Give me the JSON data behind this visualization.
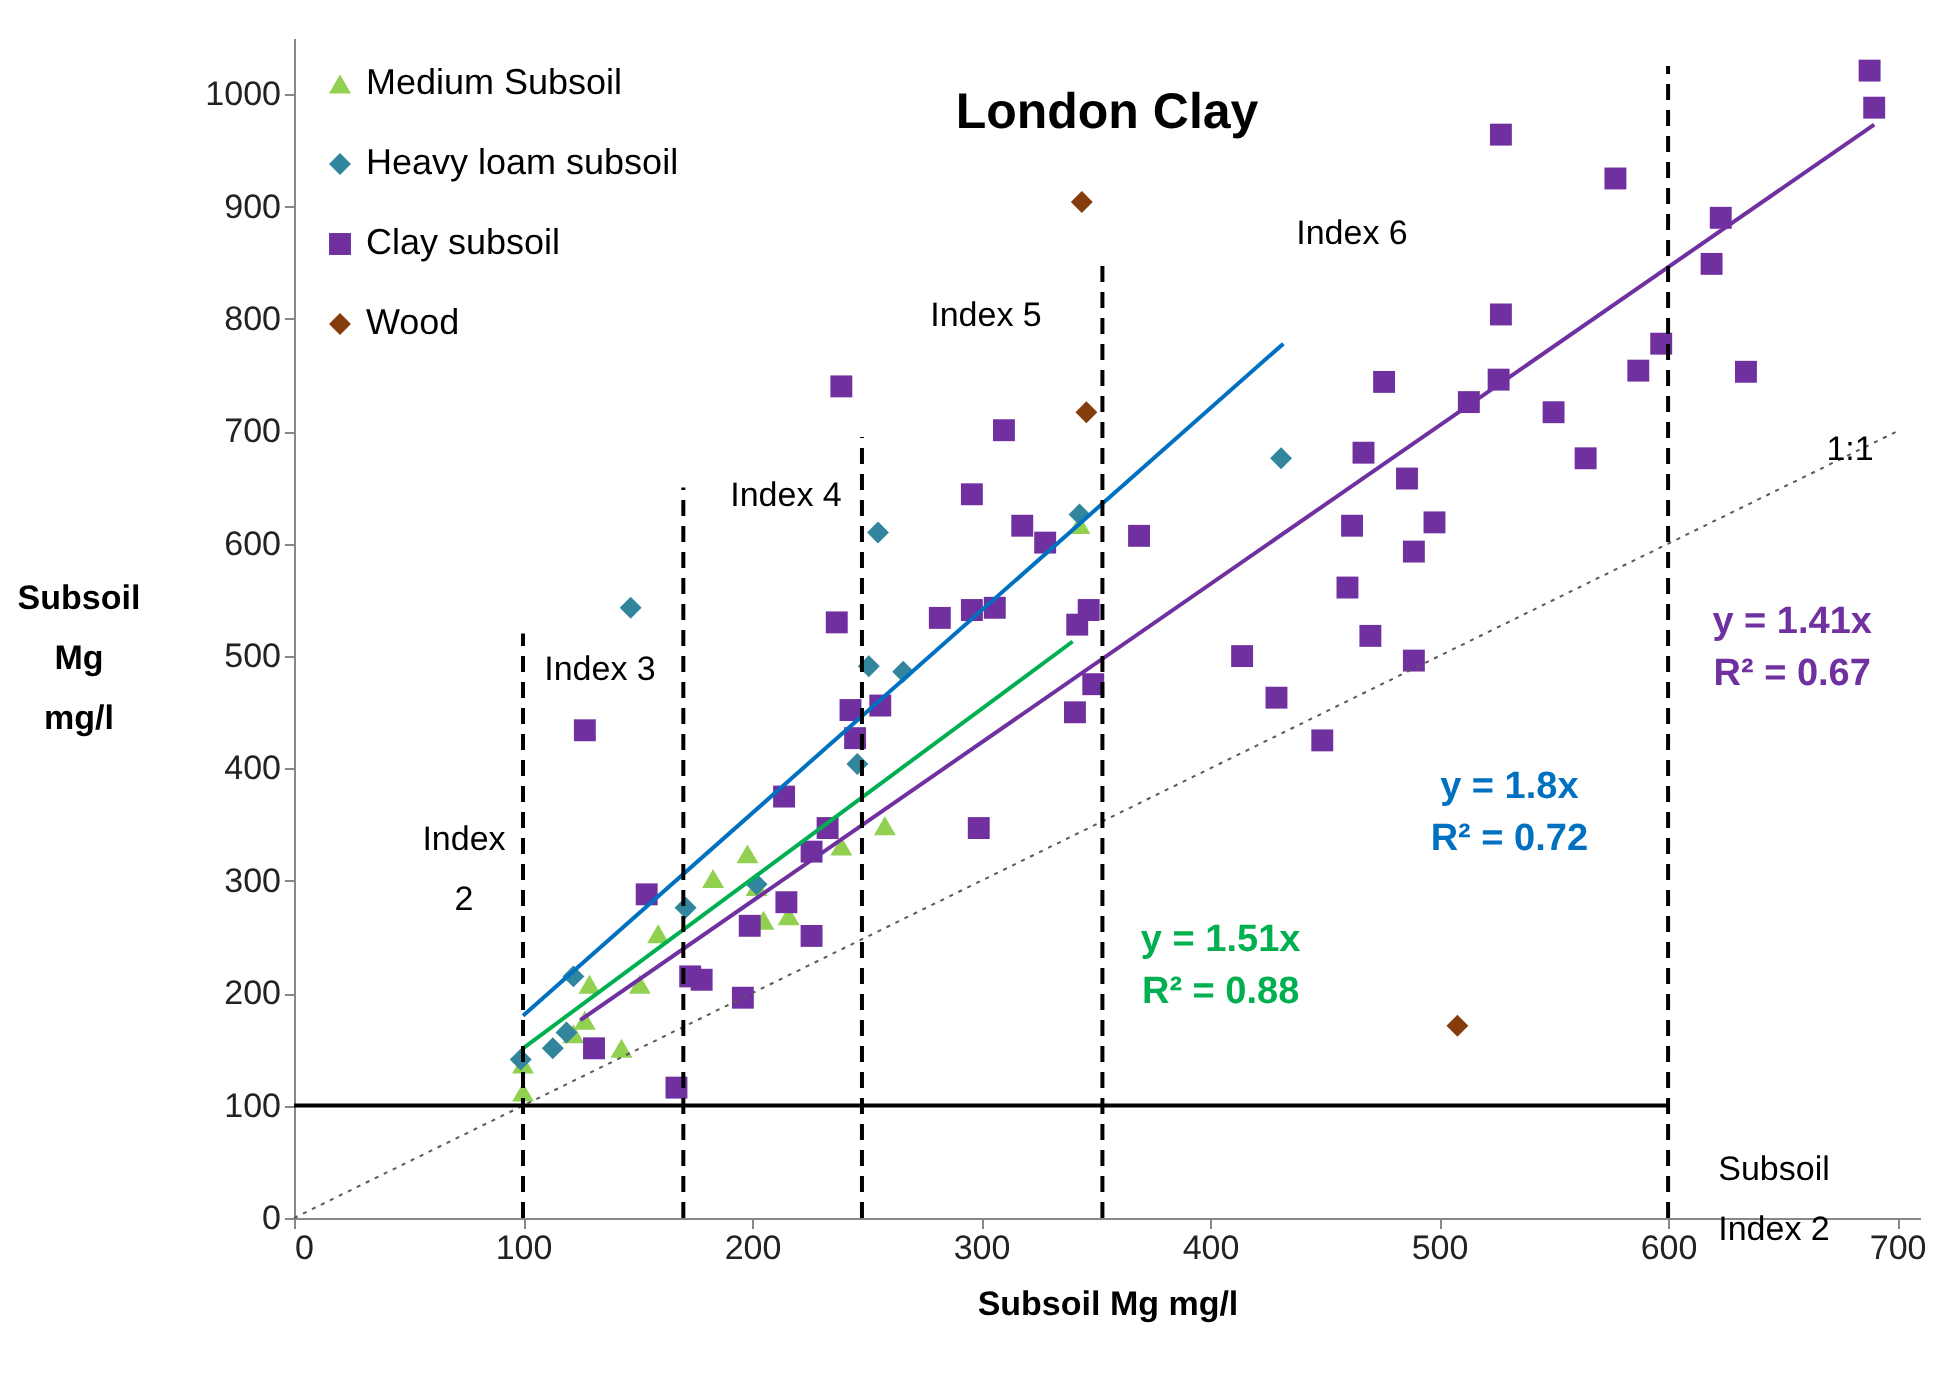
{
  "chart_data": {
    "type": "scatter",
    "title": "London Clay",
    "xlabel": "Subsoil  Mg mg/l",
    "ylabel": "Subsoil Mg mg/l",
    "xlim": [
      0,
      710
    ],
    "ylim": [
      0,
      1050
    ],
    "xticks": [
      0,
      100,
      200,
      300,
      400,
      500,
      600,
      700
    ],
    "yticks": [
      0,
      100,
      200,
      300,
      400,
      500,
      600,
      700,
      800,
      900,
      1000
    ],
    "grid": false,
    "legend": "top left",
    "series": [
      {
        "name": "Medium Subsoil",
        "type": "scatter",
        "marker": "triangle",
        "color": "#92d050",
        "x": [
          100,
          100,
          122,
          127,
          129,
          143,
          151,
          159,
          183,
          198,
          202,
          205,
          216,
          239,
          258,
          343
        ],
        "values": [
          112,
          137,
          164,
          176,
          208,
          151,
          208,
          253,
          302,
          324,
          295,
          265,
          269,
          331,
          349,
          617
        ]
      },
      {
        "name": "Heavy loam subsoil",
        "type": "scatter",
        "marker": "diamond",
        "color": "#31859c",
        "x": [
          99,
          113,
          119,
          122,
          147,
          171,
          202,
          246,
          251,
          266,
          255,
          343,
          431
        ],
        "values": [
          141,
          151,
          165,
          215,
          543,
          276,
          297,
          404,
          491,
          486,
          610,
          626,
          676
        ]
      },
      {
        "name": "Clay subsoil",
        "type": "scatter",
        "marker": "square",
        "color": "#7030a0",
        "x": [
          127,
          131,
          154,
          167,
          173,
          178,
          196,
          199,
          214,
          215,
          226,
          226,
          233,
          237,
          243,
          245,
          256,
          239,
          310,
          296,
          318,
          328,
          282,
          296,
          306,
          342,
          347,
          349,
          341,
          369,
          688,
          690,
          527,
          577,
          623,
          619,
          527,
          597,
          587,
          634,
          476,
          526,
          513,
          550,
          467,
          564,
          486,
          462,
          498,
          489,
          460,
          470,
          414,
          489,
          429,
          299,
          449
        ],
        "values": [
          434,
          151,
          288,
          116,
          215,
          212,
          196,
          260,
          375,
          281,
          326,
          251,
          347,
          530,
          452,
          427,
          456,
          740,
          701,
          644,
          616,
          601,
          534,
          541,
          543,
          528,
          541,
          475,
          450,
          607,
          1021,
          988,
          964,
          925,
          890,
          849,
          804,
          778,
          754,
          753,
          744,
          746,
          726,
          717,
          681,
          676,
          658,
          616,
          619,
          593,
          561,
          518,
          500,
          496,
          463,
          347,
          425
        ]
      },
      {
        "name": "Wood",
        "type": "scatter",
        "marker": "diamond",
        "color": "#843c0c",
        "x": [
          344,
          346,
          508
        ],
        "values": [
          904,
          717,
          171
        ]
      },
      {
        "name": "y = 1.51x\nR² = 0.88",
        "type": "line",
        "color": "#00b050",
        "x": [
          100,
          340
        ],
        "values": [
          151,
          513
        ]
      },
      {
        "name": "y = 1.8x\nR² = 0.72",
        "type": "line",
        "color": "#0070c0",
        "x": [
          100,
          432
        ],
        "values": [
          180,
          778
        ]
      },
      {
        "name": "y = 1.41x\nR² = 0.67",
        "type": "line",
        "color": "#7030a0",
        "x": [
          125,
          690
        ],
        "values": [
          176,
          973
        ]
      },
      {
        "type": "line",
        "color": "#595959",
        "line_style": "dotted",
        "x": [
          0,
          700
        ],
        "values": [
          0,
          700
        ]
      },
      {
        "type": "line",
        "color": "#000000",
        "line_style": "solid",
        "x": [
          0,
          600
        ],
        "values": [
          100,
          100
        ]
      },
      {
        "type": "line",
        "color": "#000000",
        "line_style": "dashed",
        "x": [
          100,
          100
        ],
        "values": [
          0,
          520
        ]
      },
      {
        "type": "line",
        "color": "#000000",
        "line_style": "dashed",
        "x": [
          170,
          170
        ],
        "values": [
          0,
          650
        ]
      },
      {
        "type": "line",
        "color": "#000000",
        "line_style": "dashed",
        "x": [
          248,
          248
        ],
        "values": [
          0,
          695
        ]
      },
      {
        "type": "line",
        "color": "#000000",
        "line_style": "dashed",
        "x": [
          353,
          353
        ],
        "values": [
          0,
          850
        ]
      },
      {
        "type": "line",
        "color": "#000000",
        "line_style": "dashed",
        "x": [
          600,
          600
        ],
        "values": [
          0,
          1025
        ]
      }
    ],
    "annotations": [
      "Index\n2",
      "Index 3",
      "Index 4",
      "Index 5",
      "Index 6",
      "1:1",
      "Subsoil\nIndex  2"
    ]
  }
}
